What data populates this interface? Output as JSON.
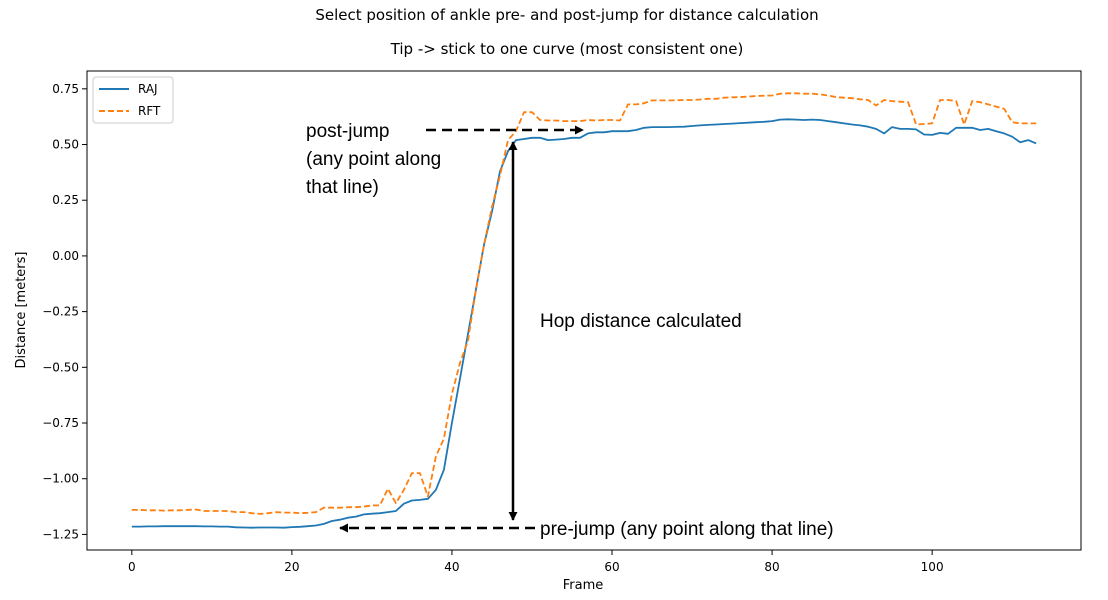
{
  "chart_data": {
    "type": "line",
    "title": "Select position of ankle pre- and post-jump for distance calculation",
    "subtitle": "Tip -> stick to one curve (most consistent one)",
    "xlabel": "Frame",
    "ylabel": "Distance [meters]",
    "xlim": [
      -5.6,
      118.6
    ],
    "ylim": [
      -1.32,
      0.83
    ],
    "xticks": [
      0,
      20,
      40,
      60,
      80,
      100
    ],
    "yticks": [
      -1.25,
      -1.0,
      -0.75,
      -0.5,
      -0.25,
      0.0,
      0.25,
      0.5,
      0.75
    ],
    "xtick_labels": [
      "0",
      "20",
      "40",
      "60",
      "80",
      "100"
    ],
    "ytick_labels": [
      "−1.25",
      "−1.00",
      "−0.75",
      "−0.50",
      "−0.25",
      "0.00",
      "0.25",
      "0.50",
      "0.75"
    ],
    "grid": false,
    "legend_position": "top-left",
    "series": [
      {
        "name": "RAJ",
        "color": "#1f77b4",
        "style": "solid",
        "x": [
          0,
          1,
          2,
          3,
          4,
          5,
          6,
          7,
          8,
          9,
          10,
          11,
          12,
          13,
          14,
          15,
          16,
          17,
          18,
          19,
          20,
          21,
          22,
          23,
          24,
          25,
          26,
          27,
          28,
          29,
          30,
          31,
          32,
          33,
          34,
          35,
          36,
          37,
          38,
          39,
          40,
          41,
          42,
          43,
          44,
          45,
          46,
          47,
          48,
          49,
          50,
          51,
          52,
          53,
          54,
          55,
          56,
          57,
          58,
          59,
          60,
          61,
          62,
          63,
          64,
          65,
          66,
          67,
          68,
          69,
          70,
          71,
          72,
          73,
          74,
          75,
          76,
          77,
          78,
          79,
          80,
          81,
          82,
          83,
          84,
          85,
          86,
          87,
          88,
          89,
          90,
          91,
          92,
          93,
          94,
          95,
          96,
          97,
          98,
          99,
          100,
          101,
          102,
          103,
          104,
          105,
          106,
          107,
          108,
          109,
          110,
          111,
          112,
          113
        ],
        "y": [
          -1.215,
          -1.215,
          -1.214,
          -1.214,
          -1.213,
          -1.213,
          -1.213,
          -1.213,
          -1.213,
          -1.214,
          -1.214,
          -1.215,
          -1.215,
          -1.218,
          -1.219,
          -1.22,
          -1.219,
          -1.219,
          -1.219,
          -1.22,
          -1.217,
          -1.216,
          -1.213,
          -1.21,
          -1.203,
          -1.19,
          -1.184,
          -1.175,
          -1.17,
          -1.16,
          -1.157,
          -1.155,
          -1.15,
          -1.145,
          -1.112,
          -1.098,
          -1.095,
          -1.09,
          -1.05,
          -0.96,
          -0.75,
          -0.55,
          -0.35,
          -0.15,
          0.05,
          0.2,
          0.38,
          0.47,
          0.52,
          0.525,
          0.53,
          0.53,
          0.52,
          0.522,
          0.525,
          0.53,
          0.53,
          0.55,
          0.555,
          0.555,
          0.56,
          0.56,
          0.56,
          0.565,
          0.575,
          0.578,
          0.578,
          0.578,
          0.579,
          0.58,
          0.583,
          0.586,
          0.588,
          0.59,
          0.592,
          0.594,
          0.596,
          0.598,
          0.6,
          0.602,
          0.605,
          0.612,
          0.613,
          0.612,
          0.61,
          0.612,
          0.61,
          0.605,
          0.6,
          0.595,
          0.59,
          0.586,
          0.58,
          0.57,
          0.55,
          0.578,
          0.57,
          0.57,
          0.568,
          0.545,
          0.543,
          0.552,
          0.548,
          0.575,
          0.575,
          0.575,
          0.565,
          0.57,
          0.56,
          0.55,
          0.535,
          0.51,
          0.52,
          0.505
        ]
      },
      {
        "name": "RFT",
        "color": "#ff7f0e",
        "style": "dashed",
        "x": [
          0,
          1,
          2,
          3,
          4,
          5,
          6,
          7,
          8,
          9,
          10,
          11,
          12,
          13,
          14,
          15,
          16,
          17,
          18,
          19,
          20,
          21,
          22,
          23,
          24,
          25,
          26,
          27,
          28,
          29,
          30,
          31,
          32,
          33,
          34,
          35,
          36,
          37,
          38,
          39,
          40,
          41,
          42,
          43,
          44,
          45,
          46,
          47,
          48,
          49,
          50,
          51,
          52,
          53,
          54,
          55,
          56,
          57,
          58,
          59,
          60,
          61,
          62,
          63,
          64,
          65,
          66,
          67,
          68,
          69,
          70,
          71,
          72,
          73,
          74,
          75,
          76,
          77,
          78,
          79,
          80,
          81,
          82,
          83,
          84,
          85,
          86,
          87,
          88,
          89,
          90,
          91,
          92,
          93,
          94,
          95,
          96,
          97,
          98,
          99,
          100,
          101,
          102,
          103,
          104,
          105,
          106,
          107,
          108,
          109,
          110,
          111,
          112,
          113
        ],
        "y": [
          -1.14,
          -1.14,
          -1.142,
          -1.142,
          -1.143,
          -1.142,
          -1.142,
          -1.14,
          -1.138,
          -1.145,
          -1.145,
          -1.145,
          -1.145,
          -1.15,
          -1.15,
          -1.155,
          -1.158,
          -1.155,
          -1.15,
          -1.152,
          -1.152,
          -1.155,
          -1.153,
          -1.15,
          -1.13,
          -1.13,
          -1.13,
          -1.128,
          -1.128,
          -1.125,
          -1.12,
          -1.12,
          -1.045,
          -1.11,
          -1.05,
          -0.975,
          -0.975,
          -1.08,
          -0.9,
          -0.82,
          -0.62,
          -0.48,
          -0.38,
          -0.15,
          0.05,
          0.22,
          0.36,
          0.52,
          0.56,
          0.645,
          0.645,
          0.61,
          0.608,
          0.608,
          0.605,
          0.605,
          0.605,
          0.61,
          0.608,
          0.61,
          0.61,
          0.608,
          0.68,
          0.68,
          0.685,
          0.698,
          0.698,
          0.698,
          0.698,
          0.7,
          0.7,
          0.702,
          0.705,
          0.705,
          0.71,
          0.712,
          0.713,
          0.715,
          0.718,
          0.719,
          0.72,
          0.728,
          0.73,
          0.73,
          0.728,
          0.728,
          0.725,
          0.72,
          0.713,
          0.71,
          0.708,
          0.703,
          0.7,
          0.675,
          0.7,
          0.695,
          0.692,
          0.69,
          0.59,
          0.592,
          0.595,
          0.7,
          0.7,
          0.695,
          0.59,
          0.695,
          0.69,
          0.68,
          0.67,
          0.66,
          0.6,
          0.595,
          0.595,
          0.595
        ]
      }
    ],
    "annotations": [
      {
        "id": "post",
        "lines": [
          "post-jump",
          "(any point along",
          "that line)"
        ]
      },
      {
        "id": "hop",
        "lines": [
          "Hop distance calculated"
        ]
      },
      {
        "id": "pre",
        "lines": [
          "pre-jump (any point along that line)"
        ]
      }
    ]
  }
}
